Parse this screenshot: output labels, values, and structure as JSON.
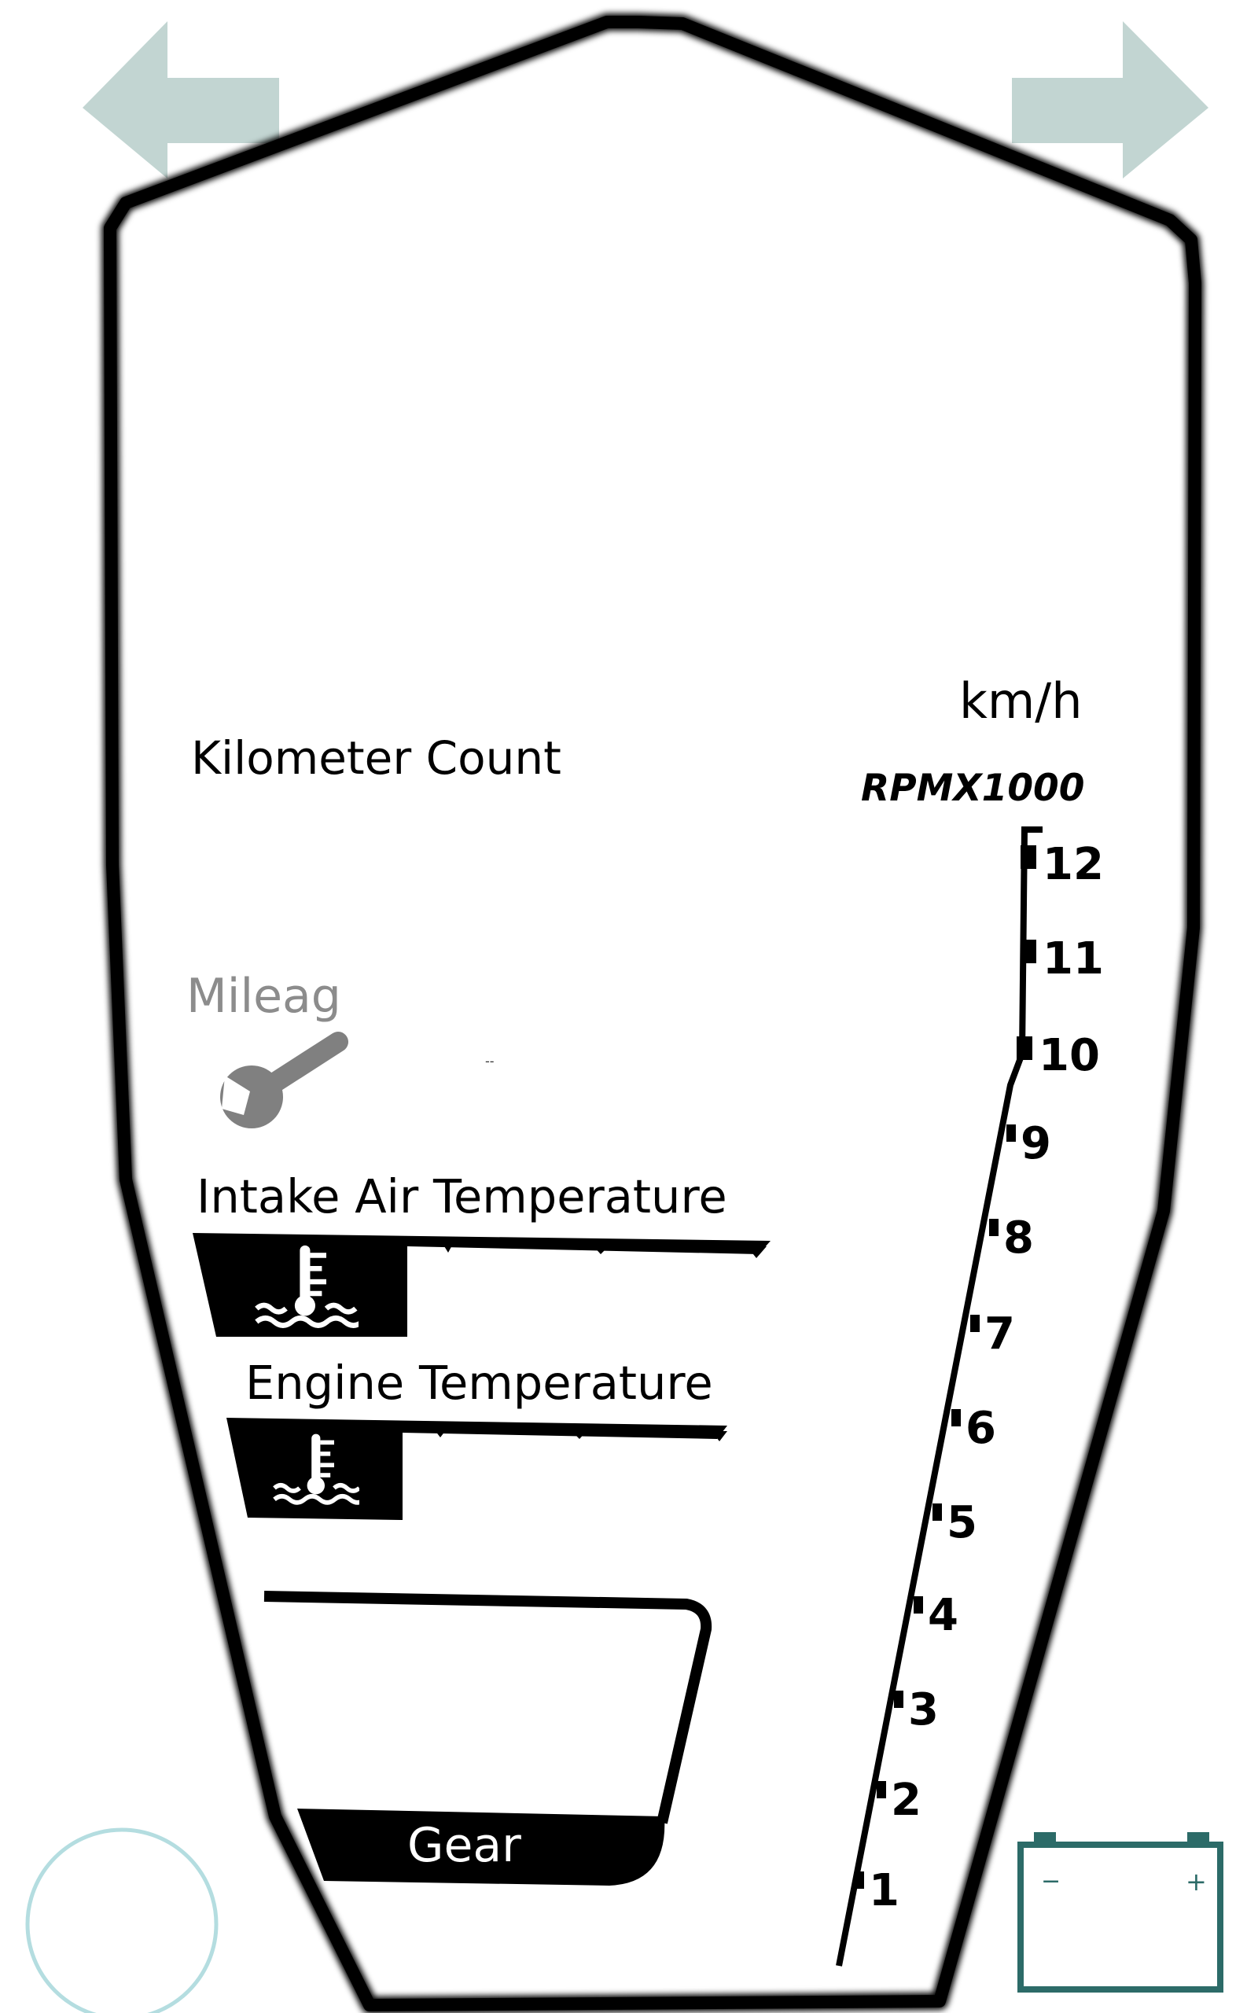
{
  "navigation": {
    "left_arrow_icon": "arrow-left-icon",
    "right_arrow_icon": "arrow-right-icon",
    "arrow_color": "#c2d5d2"
  },
  "speed": {
    "unit": "km/h"
  },
  "odometer": {
    "label": "Kilometer Count"
  },
  "tachometer": {
    "unit_label": "RPMX1000",
    "ticks": [
      "1",
      "2",
      "3",
      "4",
      "5",
      "6",
      "7",
      "8",
      "9",
      "10",
      "11",
      "12"
    ]
  },
  "service": {
    "label": "Mileag",
    "value": "--",
    "icon": "wrench-icon",
    "icon_color": "#808080"
  },
  "intake_air_temperature": {
    "label": "Intake Air Temperature",
    "icon": "coolant-temperature-icon"
  },
  "engine_temperature": {
    "label": "Engine Temperature",
    "icon": "coolant-temperature-icon"
  },
  "gear": {
    "label": "Gear"
  },
  "status_indicators": {
    "circle_color": "#b4dde0",
    "battery_icon": "battery-icon",
    "battery_color": "#2c6b68",
    "battery_minus": "−",
    "battery_plus": "+"
  }
}
